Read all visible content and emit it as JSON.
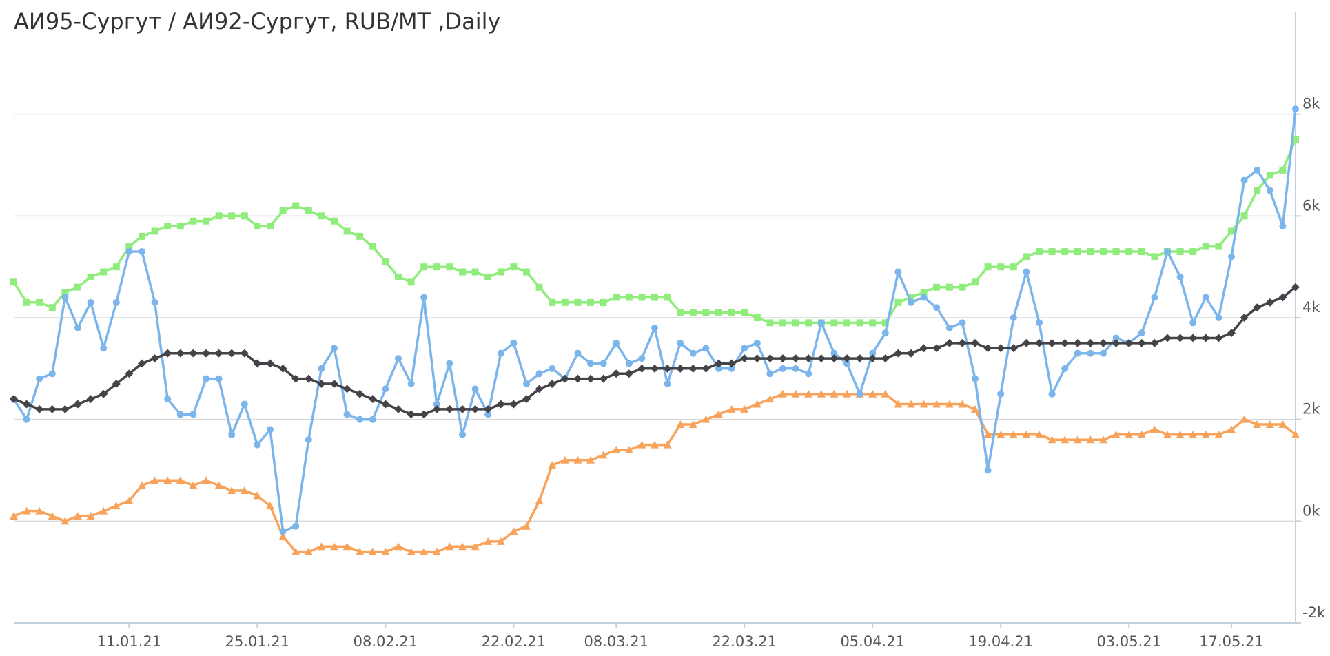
{
  "title": "АИ95-Сургут / АИ92-Сургут, RUB/MT ,Daily",
  "colors": {
    "blue": "#7cb5ec",
    "green": "#90ed7d",
    "orange": "#f7a35c",
    "black": "#434348",
    "grid": "#d8d8d8",
    "axis": "#c0d0e0"
  },
  "chart_data": {
    "type": "line",
    "title": "АИ95-Сургут / АИ92-Сургут, RUB/MT ,Daily",
    "xlabel": "",
    "ylabel": "",
    "ylim": [
      -2000,
      10000
    ],
    "y_ticks": [
      -2000,
      0,
      2000,
      4000,
      6000,
      8000
    ],
    "y_tick_labels": [
      "-2k",
      "0k",
      "2k",
      "4k",
      "6k",
      "8k"
    ],
    "x_tick_labels": [
      {
        "label": "11.01.21",
        "index": 9
      },
      {
        "label": "25.01.21",
        "index": 19
      },
      {
        "label": "08.02.21",
        "index": 29
      },
      {
        "label": "22.02.21",
        "index": 39
      },
      {
        "label": "08.03.21",
        "index": 47
      },
      {
        "label": "22.03.21",
        "index": 57
      },
      {
        "label": "05.04.21",
        "index": 67
      },
      {
        "label": "19.04.21",
        "index": 77
      },
      {
        "label": "03.05.21",
        "index": 87
      },
      {
        "label": "17.05.21",
        "index": 95
      }
    ],
    "grid": true,
    "legend": "none",
    "point_count": 101,
    "series": [
      {
        "color": "#7cb5ec",
        "marker": "circle",
        "values": [
          2400,
          2000,
          2800,
          2900,
          4400,
          3800,
          4300,
          3400,
          4300,
          5300,
          5300,
          4300,
          2400,
          2100,
          2100,
          2800,
          2800,
          1700,
          2300,
          1500,
          1800,
          -200,
          -100,
          1600,
          3000,
          3400,
          2100,
          2000,
          2000,
          2600,
          3200,
          2700,
          4400,
          2300,
          3100,
          1700,
          2600,
          2100,
          3300,
          3500,
          2700,
          2900,
          3000,
          2800,
          3300,
          3100,
          3100,
          3500,
          3100,
          3200,
          3800,
          2700,
          3500,
          3300,
          3400,
          3000,
          3000,
          3400,
          3500,
          2900,
          3000,
          3000,
          2900,
          3900,
          3300,
          3100,
          2500,
          3300,
          3700,
          4900,
          4300,
          4400,
          4200,
          3800,
          3900,
          2800,
          1000,
          2500,
          4000,
          4900,
          3900,
          2500,
          3000,
          3300,
          3300,
          3300,
          3600,
          3500,
          3700,
          4400,
          5300,
          4800,
          3900,
          4400,
          4000,
          5200,
          6700,
          6900,
          6500,
          5800,
          8100
        ]
      },
      {
        "color": "#90ed7d",
        "marker": "square",
        "values": [
          4700,
          4300,
          4300,
          4200,
          4500,
          4600,
          4800,
          4900,
          5000,
          5400,
          5600,
          5700,
          5800,
          5800,
          5900,
          5900,
          6000,
          6000,
          6000,
          5800,
          5800,
          6100,
          6200,
          6100,
          6000,
          5900,
          5700,
          5600,
          5400,
          5100,
          4800,
          4700,
          5000,
          5000,
          5000,
          4900,
          4900,
          4800,
          4900,
          5000,
          4900,
          4600,
          4300,
          4300,
          4300,
          4300,
          4300,
          4400,
          4400,
          4400,
          4400,
          4400,
          4100,
          4100,
          4100,
          4100,
          4100,
          4100,
          4000,
          3900,
          3900,
          3900,
          3900,
          3900,
          3900,
          3900,
          3900,
          3900,
          3900,
          4300,
          4400,
          4500,
          4600,
          4600,
          4600,
          4700,
          5000,
          5000,
          5000,
          5200,
          5300,
          5300,
          5300,
          5300,
          5300,
          5300,
          5300,
          5300,
          5300,
          5200,
          5300,
          5300,
          5300,
          5400,
          5400,
          5700,
          6000,
          6500,
          6800,
          6900,
          7500
        ]
      },
      {
        "color": "#f7a35c",
        "marker": "triangle",
        "values": [
          100,
          200,
          200,
          100,
          0,
          100,
          100,
          200,
          300,
          400,
          700,
          800,
          800,
          800,
          700,
          800,
          700,
          600,
          600,
          500,
          300,
          -300,
          -600,
          -600,
          -500,
          -500,
          -500,
          -600,
          -600,
          -600,
          -500,
          -600,
          -600,
          -600,
          -500,
          -500,
          -500,
          -400,
          -400,
          -200,
          -100,
          400,
          1100,
          1200,
          1200,
          1200,
          1300,
          1400,
          1400,
          1500,
          1500,
          1500,
          1900,
          1900,
          2000,
          2100,
          2200,
          2200,
          2300,
          2400,
          2500,
          2500,
          2500,
          2500,
          2500,
          2500,
          2500,
          2500,
          2500,
          2300,
          2300,
          2300,
          2300,
          2300,
          2300,
          2200,
          1700,
          1700,
          1700,
          1700,
          1700,
          1600,
          1600,
          1600,
          1600,
          1600,
          1700,
          1700,
          1700,
          1800,
          1700,
          1700,
          1700,
          1700,
          1700,
          1800,
          2000,
          1900,
          1900,
          1900,
          1700
        ]
      },
      {
        "color": "#434348",
        "marker": "diamond",
        "values": [
          2400,
          2300,
          2200,
          2200,
          2200,
          2300,
          2400,
          2500,
          2700,
          2900,
          3100,
          3200,
          3300,
          3300,
          3300,
          3300,
          3300,
          3300,
          3300,
          3100,
          3100,
          3000,
          2800,
          2800,
          2700,
          2700,
          2600,
          2500,
          2400,
          2300,
          2200,
          2100,
          2100,
          2200,
          2200,
          2200,
          2200,
          2200,
          2300,
          2300,
          2400,
          2600,
          2700,
          2800,
          2800,
          2800,
          2800,
          2900,
          2900,
          3000,
          3000,
          3000,
          3000,
          3000,
          3000,
          3100,
          3100,
          3200,
          3200,
          3200,
          3200,
          3200,
          3200,
          3200,
          3200,
          3200,
          3200,
          3200,
          3200,
          3300,
          3300,
          3400,
          3400,
          3500,
          3500,
          3500,
          3400,
          3400,
          3400,
          3500,
          3500,
          3500,
          3500,
          3500,
          3500,
          3500,
          3500,
          3500,
          3500,
          3500,
          3600,
          3600,
          3600,
          3600,
          3600,
          3700,
          4000,
          4200,
          4300,
          4400,
          4600
        ]
      }
    ]
  }
}
